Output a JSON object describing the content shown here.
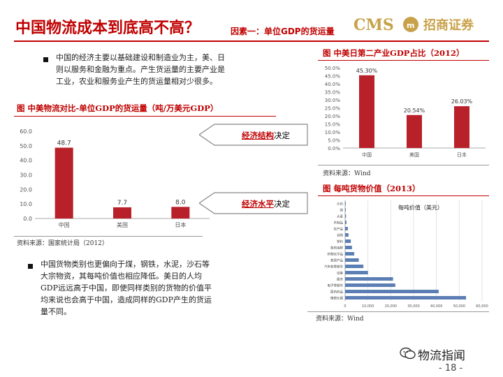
{
  "header": {
    "title": "中国物流成本到底高不高？",
    "subtitle": "因素一：单位GDP的货运量",
    "logo_cms": "CMS",
    "logo_brand": "招商证券"
  },
  "left": {
    "bullet1": [
      "中国的经济主要以基础建设和制造业为主，美、日",
      "则以服务和金融为重点。产生货运量的主要产业是",
      "工业，农业和服务业产生的货运量相对少很多。"
    ],
    "fig_title": "图  中美物流对比-单位GDP的货运量（吨/万美元GDP）",
    "source": "资料来源：国家统计局（2012）",
    "bullet2": [
      "中国货物类别也更偏向于煤，钢铁，水泥，沙石等",
      "大宗物资，其每吨价值也相应降低。美日的人均",
      "GDP远远高于中国，即使同样类别的货物的价值平",
      "均来说也会高于中国，造成同样的GDP产生的货运",
      "量不同。"
    ]
  },
  "callouts": [
    {
      "highlight": "经济结构",
      "suffix": "决定"
    },
    {
      "highlight": "经济水平",
      "suffix": "决定"
    }
  ],
  "right": {
    "fig1_title": "图  中美日第二产业GDP占比（2012）",
    "fig1_source": "资料来源：Wind",
    "fig2_title": "图  每吨货物价值（2013）",
    "fig2_source": "资料来源：Wind"
  },
  "footer": {
    "brand": "物流指闻",
    "page": "- 18 -"
  },
  "colors": {
    "accent": "#c00000",
    "bar": "#b8202a",
    "bar_blue": "#5b7fb5",
    "gold": "#c8a24a"
  },
  "chart_data": [
    {
      "type": "bar",
      "categories": [
        "中国",
        "美国",
        "日本"
      ],
      "values": [
        48.7,
        7.7,
        8.0
      ],
      "value_labels": [
        "48.7",
        "7.7",
        "8.0"
      ],
      "ylim": [
        0,
        60
      ],
      "yticks": [
        "0.0",
        "10.0",
        "20.0",
        "30.0",
        "40.0",
        "50.0",
        "60.0"
      ],
      "grid": false
    },
    {
      "type": "bar",
      "categories": [
        "中国",
        "美国",
        "日本"
      ],
      "values": [
        45.3,
        20.54,
        26.03
      ],
      "value_labels": [
        "45.30%",
        "20.54%",
        "26.03%"
      ],
      "ylim": [
        0,
        50
      ],
      "yticks": [
        "0.0%",
        "5.0%",
        "10.0%",
        "15.0%",
        "20.0%",
        "25.0%",
        "30.0%",
        "35.0%",
        "40.0%",
        "45.0%",
        "50.0%"
      ],
      "grid": false
    },
    {
      "type": "bar",
      "orientation": "horizontal",
      "title": "每吨价值（美元）",
      "categories": [
        "沙石",
        "煤",
        "大麦",
        "木制品",
        "农产品",
        "谷物",
        "塑料",
        "鱼肉海鲜",
        "药物化学品",
        "家居产品",
        "汽车和零部件",
        "设备",
        "服务",
        "电子零部件",
        "医药药品",
        "精密仪器"
      ],
      "values": [
        200,
        300,
        400,
        600,
        1200,
        1500,
        2500,
        3000,
        4000,
        6000,
        8000,
        10000,
        21000,
        22000,
        41000,
        53000
      ],
      "xlim": [
        0,
        60000
      ],
      "xticks": [
        "0",
        "10,000",
        "20,000",
        "30,000",
        "40,000",
        "50,000",
        "60,000"
      ],
      "grid": true
    }
  ]
}
